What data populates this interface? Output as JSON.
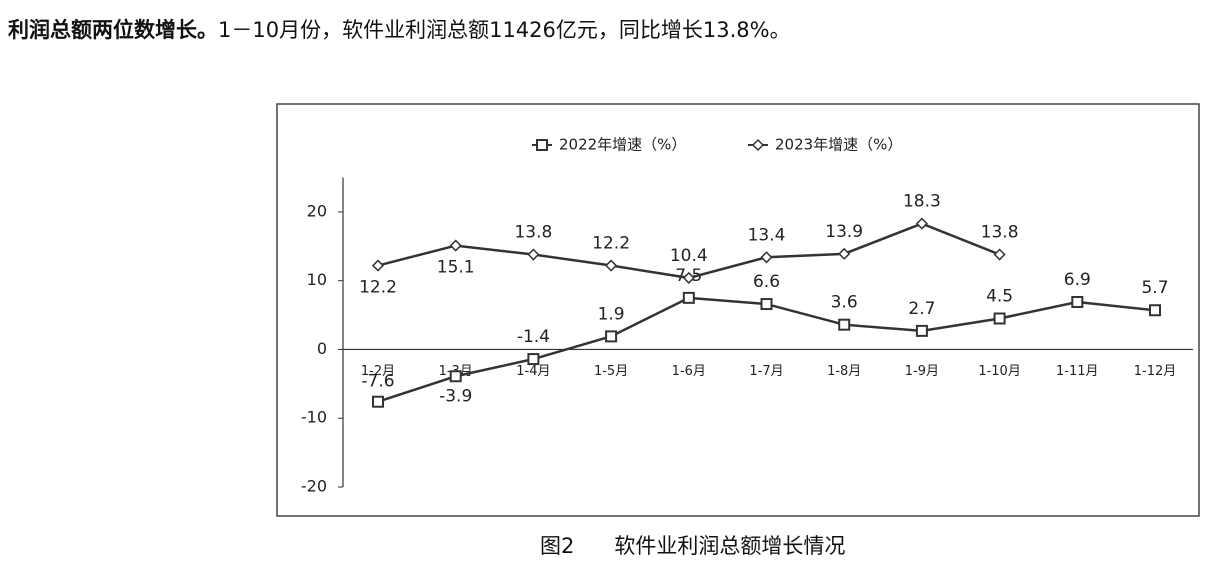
{
  "paragraph": {
    "lead": "利润总额两位数增长。",
    "text": "1－10月份，软件业利润总额11426亿元，同比增长13.8%。"
  },
  "chart_data": {
    "type": "line",
    "categories": [
      "1-2月",
      "1-3月",
      "1-4月",
      "1-5月",
      "1-6月",
      "1-7月",
      "1-8月",
      "1-9月",
      "1-10月",
      "1-11月",
      "1-12月"
    ],
    "series": [
      {
        "name": "2022年增速（%）",
        "color": "#333333",
        "marker": "square",
        "values": [
          -7.6,
          -3.9,
          -1.4,
          1.9,
          7.5,
          6.6,
          3.6,
          2.7,
          4.5,
          6.9,
          5.7
        ]
      },
      {
        "name": "2023年增速（%）",
        "color": "#333333",
        "marker": "diamond",
        "values": [
          12.2,
          15.1,
          13.8,
          12.2,
          10.4,
          13.4,
          13.9,
          18.3,
          13.8,
          null,
          null
        ]
      }
    ],
    "ylim": [
      -20,
      25
    ],
    "yticks": [
      -20,
      -10,
      0,
      10,
      20
    ],
    "legend": "top"
  },
  "caption": {
    "number": "图2",
    "title": "软件业利润总额增长情况"
  }
}
